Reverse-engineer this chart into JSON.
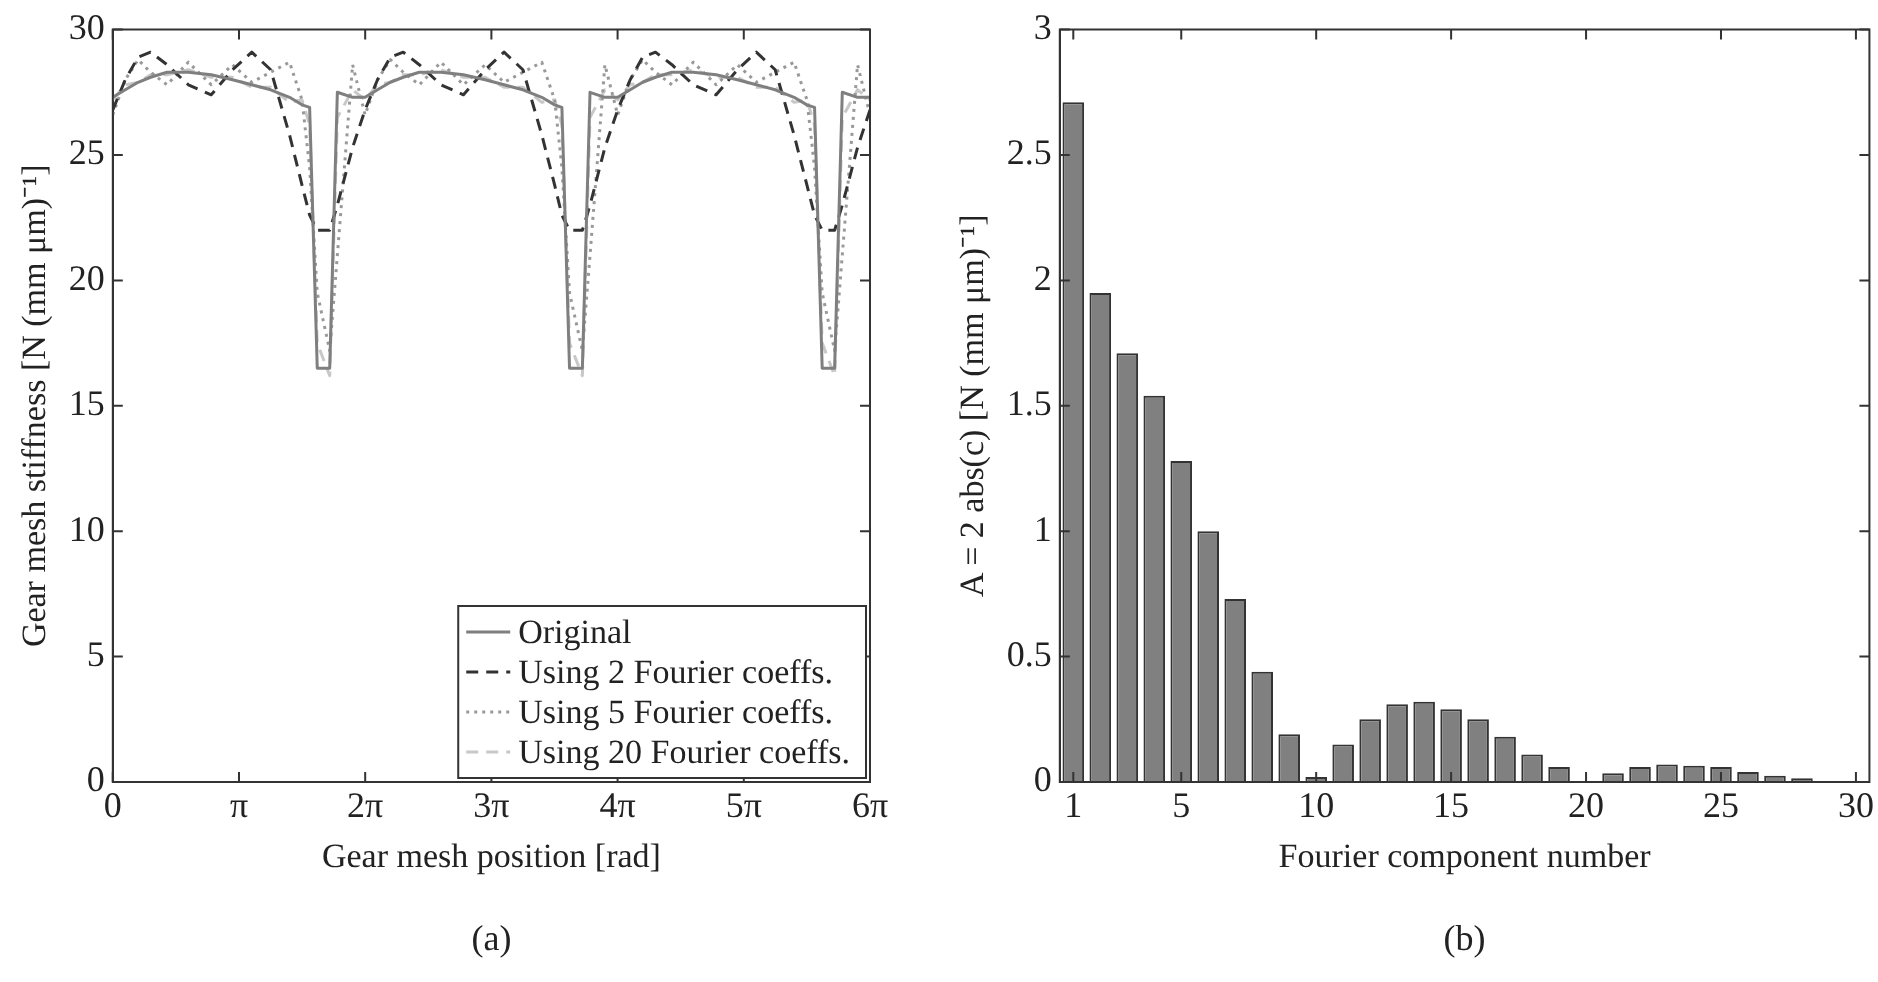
{
  "chart_data": [
    {
      "type": "line",
      "xlabel": "Gear mesh position [rad]",
      "ylabel": "Gear mesh stiffness [N (mm μm)⁻¹]",
      "annotations": [
        "(a)"
      ],
      "x": [
        0,
        0.31,
        0.63,
        0.94,
        1.35,
        1.88,
        2.45,
        2.98,
        3.46,
        3.93,
        4.4,
        4.71,
        4.9,
        5.09,
        5.4,
        5.59,
        5.97,
        6.28,
        6.59,
        6.91,
        7.23,
        7.63,
        8.17,
        8.73,
        9.27,
        9.74,
        10.21,
        10.68,
        11.0,
        11.18,
        11.37,
        11.69,
        11.88,
        12.25,
        12.57,
        12.88,
        13.19,
        13.51,
        13.92,
        14.45,
        15.02,
        15.55,
        16.02,
        16.49,
        16.96,
        17.28,
        17.47,
        17.66,
        17.97,
        18.16,
        18.54,
        18.85
      ],
      "xlim": [
        0,
        18.85
      ],
      "xticks": [
        0,
        {
          "value": 3.1416,
          "label": "π"
        },
        {
          "value": 6.2832,
          "label": "2π"
        },
        {
          "value": 9.4248,
          "label": "3π"
        },
        {
          "value": 12.5664,
          "label": "4π"
        },
        {
          "value": 15.708,
          "label": "5π"
        },
        {
          "value": 18.8496,
          "label": "6π"
        }
      ],
      "ylim": [
        0,
        30
      ],
      "yticks": [
        0,
        5,
        10,
        15,
        20,
        25,
        30
      ],
      "grid": false,
      "legend": "bottom right",
      "marker": "none",
      "series": [
        {
          "name": "Original",
          "color": "#7f7f7f",
          "line_style": "solid",
          "values": [
            27.3,
            27.6,
            27.9,
            28.1,
            28.3,
            28.3,
            28.2,
            28.0,
            27.8,
            27.6,
            27.3,
            27.0,
            26.9,
            16.5,
            16.5,
            27.5,
            27.3,
            27.3,
            27.6,
            27.9,
            28.1,
            28.3,
            28.3,
            28.2,
            28.0,
            27.8,
            27.6,
            27.3,
            27.0,
            26.9,
            16.5,
            16.5,
            27.5,
            27.3,
            27.3,
            27.6,
            27.9,
            28.1,
            28.3,
            28.3,
            28.2,
            28.0,
            27.8,
            27.6,
            27.3,
            27.0,
            26.9,
            16.5,
            16.5,
            27.5,
            27.3,
            27.3
          ]
        },
        {
          "name": "Using 2 Fourier coeffs.",
          "color": "#333333",
          "line_style": "dashed",
          "values": [
            26.8,
            28.0,
            28.9,
            29.1,
            28.6,
            27.8,
            27.4,
            28.4,
            29.1,
            28.4,
            25.8,
            23.8,
            22.6,
            22.0,
            22.0,
            23.0,
            25.3,
            26.8,
            28.0,
            28.9,
            29.1,
            28.6,
            27.8,
            27.4,
            28.4,
            29.1,
            28.4,
            25.8,
            23.8,
            22.6,
            22.0,
            22.0,
            23.0,
            25.3,
            26.8,
            28.0,
            28.9,
            29.1,
            28.6,
            27.8,
            27.4,
            28.4,
            29.1,
            28.4,
            25.8,
            23.8,
            22.6,
            22.0,
            22.0,
            23.0,
            25.3,
            26.8
          ]
        },
        {
          "name": "Using 5 Fourier coeffs.",
          "color": "#999999",
          "line_style": "dotted",
          "values": [
            26.6,
            28.0,
            28.8,
            28.3,
            27.8,
            28.7,
            27.8,
            28.6,
            27.9,
            28.3,
            28.7,
            27.2,
            24.5,
            19.5,
            17.2,
            21.0,
            28.6,
            26.6,
            28.0,
            28.8,
            28.3,
            27.8,
            28.7,
            27.8,
            28.6,
            27.9,
            28.3,
            28.7,
            27.2,
            24.5,
            19.5,
            17.2,
            21.0,
            28.6,
            26.6,
            28.0,
            28.8,
            28.3,
            27.8,
            28.7,
            27.8,
            28.6,
            27.9,
            28.3,
            28.7,
            27.2,
            24.5,
            19.5,
            17.2,
            21.0,
            28.6,
            26.6
          ]
        },
        {
          "name": "Using 20 Fourier coeffs.",
          "color": "#c8c8c8",
          "line_style": "dashed",
          "values": [
            27.2,
            27.8,
            27.9,
            28.2,
            28.2,
            28.4,
            28.1,
            28.1,
            27.7,
            27.7,
            27.1,
            27.2,
            26.2,
            17.5,
            16.2,
            26.5,
            27.6,
            27.2,
            27.8,
            27.9,
            28.2,
            28.2,
            28.4,
            28.1,
            28.1,
            27.7,
            27.7,
            27.1,
            27.2,
            26.2,
            17.5,
            16.2,
            26.5,
            27.6,
            27.2,
            27.8,
            27.9,
            28.2,
            28.2,
            28.4,
            28.1,
            28.1,
            27.7,
            27.7,
            27.1,
            27.2,
            26.2,
            17.5,
            16.2,
            26.5,
            27.6,
            27.2
          ]
        }
      ]
    },
    {
      "type": "bar",
      "xlabel": "Fourier component number",
      "ylabel": "A = 2 abs(c) [N (mm μm)⁻¹]",
      "annotations": [
        "(b)"
      ],
      "categories": [
        "1",
        null,
        null,
        null,
        "5",
        null,
        null,
        null,
        null,
        "10",
        null,
        null,
        null,
        null,
        "15",
        null,
        null,
        null,
        null,
        "20",
        null,
        null,
        null,
        null,
        "25",
        null,
        null,
        null,
        null,
        "30"
      ],
      "values": [
        2.71,
        1.95,
        1.71,
        1.54,
        1.28,
        1.0,
        0.73,
        0.44,
        0.19,
        0.02,
        0.15,
        0.25,
        0.31,
        0.32,
        0.29,
        0.25,
        0.18,
        0.11,
        0.06,
        null,
        0.035,
        0.06,
        0.07,
        0.065,
        0.06,
        0.04,
        0.025,
        0.015,
        null,
        null
      ],
      "color": "#808080",
      "ylim": [
        0,
        3
      ],
      "yticks": [
        0,
        0.5,
        1,
        1.5,
        2,
        2.5,
        3
      ],
      "grid": false,
      "legend": false
    }
  ]
}
